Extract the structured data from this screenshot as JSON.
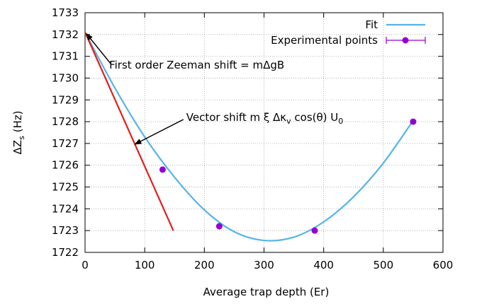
{
  "chart_data": {
    "type": "line",
    "xlabel": "Average trap depth (Er)",
    "ylabel_main": "ΔZ",
    "ylabel_sub": "s",
    "ylabel_unit": " (Hz)",
    "xlim": [
      0,
      600
    ],
    "ylim": [
      1722,
      1733
    ],
    "xticks": [
      0,
      100,
      200,
      300,
      400,
      500,
      600
    ],
    "yticks": [
      1722,
      1723,
      1724,
      1725,
      1726,
      1727,
      1728,
      1729,
      1730,
      1731,
      1732,
      1733
    ],
    "grid": true,
    "legend_position": "top-right",
    "colors": {
      "fit": "#56b4e9",
      "points": "#9400d3",
      "tangent": "#e0201b"
    },
    "series": [
      {
        "name": "Fit",
        "kind": "line",
        "x": [
          0,
          50,
          100,
          150,
          200,
          250,
          300,
          350,
          400,
          450,
          500,
          550
        ],
        "y": [
          1732.1,
          1729.55,
          1727.3,
          1725.45,
          1723.95,
          1722.95,
          1722.55,
          1722.7,
          1723.4,
          1724.55,
          1726.1,
          1728.05
        ]
      },
      {
        "name": "Experimental points",
        "kind": "points",
        "x": [
          130,
          225,
          385,
          550
        ],
        "y": [
          1725.8,
          1723.2,
          1723.0,
          1728.0
        ]
      },
      {
        "name": "",
        "kind": "line",
        "x": [
          0,
          148
        ],
        "y": [
          1732.1,
          1723.0
        ]
      }
    ],
    "annotations": [
      {
        "text": "First order Zeeman shift = mΔgB",
        "arrow_to": [
          0,
          1732.1
        ],
        "arrow_from": [
          50,
          1730.6
        ],
        "text_at": [
          50,
          1730.6
        ]
      },
      {
        "text_main": "Vector shift m ξ Δκ",
        "text_sub": "v",
        "text_after": " cos(θ) U",
        "text_sub2": "0",
        "arrow_to": [
          80,
          1726.9
        ],
        "arrow_from": [
          172,
          1728.1
        ],
        "text_at": [
          172,
          1728.1
        ]
      }
    ]
  }
}
